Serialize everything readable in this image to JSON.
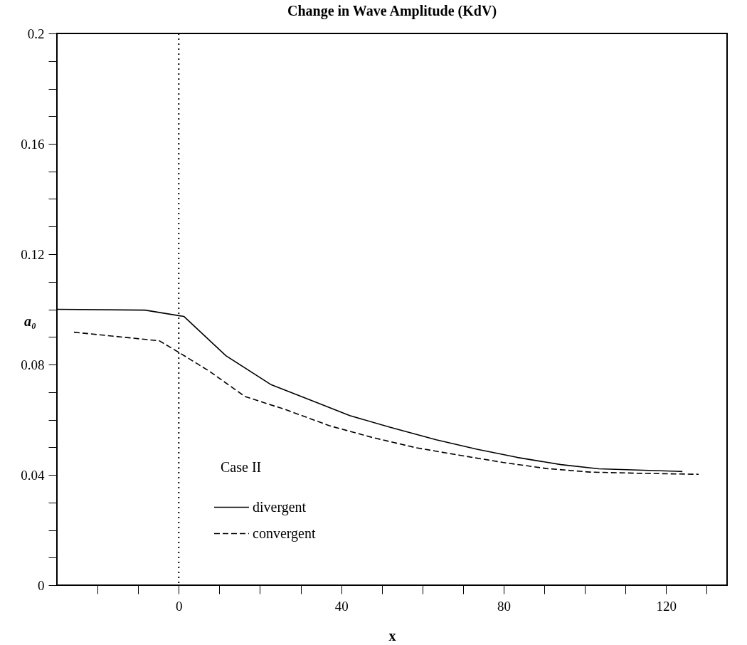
{
  "chart_data": {
    "type": "line",
    "title": "Change in Wave Amplitude (KdV)",
    "xlabel": "x",
    "ylabel": "a₀",
    "xlim": [
      -30,
      135
    ],
    "ylim": [
      0,
      0.2
    ],
    "xticks": [
      {
        "value": -20,
        "label": null
      },
      {
        "value": -10,
        "label": null
      },
      0,
      {
        "value": 10,
        "label": null
      },
      {
        "value": 20,
        "label": null
      },
      {
        "value": 30,
        "label": null
      },
      40,
      {
        "value": 50,
        "label": null
      },
      {
        "value": 60,
        "label": null
      },
      {
        "value": 70,
        "label": null
      },
      80,
      {
        "value": 90,
        "label": null
      },
      {
        "value": 100,
        "label": null
      },
      {
        "value": 110,
        "label": null
      },
      120,
      {
        "value": 130,
        "label": null
      }
    ],
    "yticks": [
      0,
      {
        "value": 0.01,
        "label": null
      },
      {
        "value": 0.02,
        "label": null
      },
      {
        "value": 0.03,
        "label": null
      },
      0.04,
      {
        "value": 0.05,
        "label": null
      },
      {
        "value": 0.06,
        "label": null
      },
      {
        "value": 0.07,
        "label": null
      },
      0.08,
      {
        "value": 0.09,
        "label": null
      },
      {
        "value": 0.1,
        "label": null
      },
      {
        "value": 0.11,
        "label": null
      },
      0.12,
      {
        "value": 0.13,
        "label": null
      },
      {
        "value": 0.14,
        "label": null
      },
      {
        "value": 0.15,
        "label": null
      },
      0.16,
      {
        "value": 0.17,
        "label": null
      },
      {
        "value": 0.18,
        "label": null
      },
      {
        "value": 0.19,
        "label": null
      },
      0.2
    ],
    "grid": false,
    "legend": "bottom left",
    "marker": "none",
    "series": [
      {
        "name": "divergent",
        "color": "#000000",
        "line_style": "solid",
        "x": [
          -30,
          -8.3,
          1.3,
          11.6,
          22.6,
          32.1,
          42.1,
          52.1,
          63.4,
          73.4,
          83.4,
          94.1,
          103.4,
          122.6,
          124
        ],
        "values": [
          0.1,
          0.0997,
          0.0974,
          0.0832,
          0.0728,
          0.0673,
          0.0615,
          0.0572,
          0.0527,
          0.0493,
          0.0463,
          0.0437,
          0.0422,
          0.0413,
          0.0412
        ]
      },
      {
        "name": "convergent",
        "color": "#000000",
        "line_style": "dashed",
        "x": [
          -25.8,
          -4.8,
          0,
          7.5,
          16.3,
          26.4,
          37.1,
          47.8,
          58.5,
          69.2,
          79.8,
          90.5,
          101.2,
          115.5,
          128
        ],
        "values": [
          0.0917,
          0.0886,
          0.0844,
          0.0776,
          0.0684,
          0.0636,
          0.0578,
          0.0535,
          0.0498,
          0.0471,
          0.0445,
          0.0423,
          0.041,
          0.0405,
          0.0402
        ]
      }
    ],
    "ref_lines": [
      {
        "axis": "x",
        "value": 0,
        "line_style": "dotted",
        "color": "#000000"
      }
    ],
    "annotations": [
      "Case II"
    ]
  }
}
